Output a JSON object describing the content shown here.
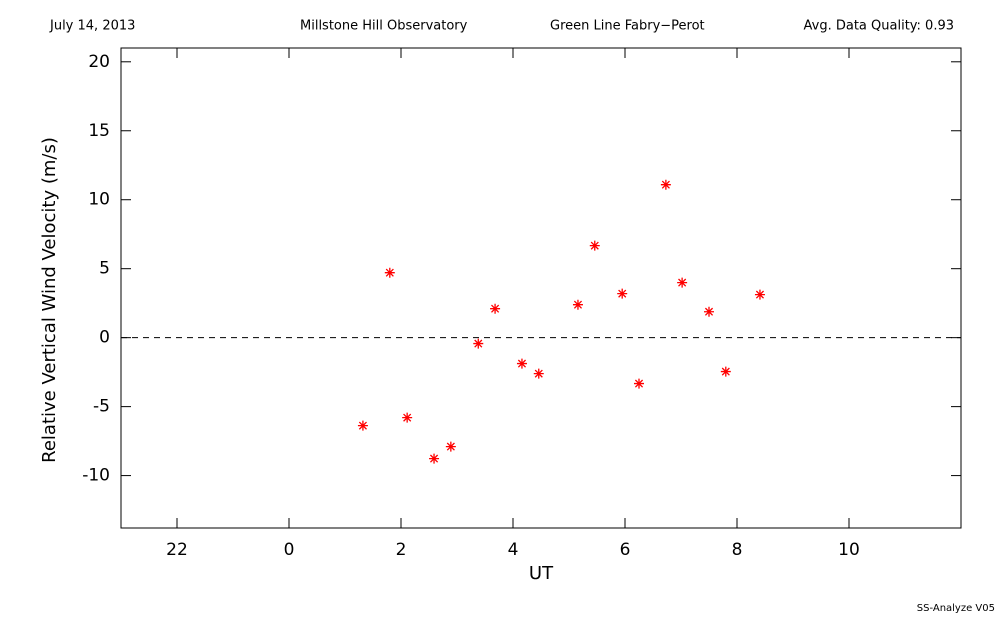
{
  "chart_data": {
    "type": "scatter",
    "header": [
      "July 14, 2013",
      "Millstone Hill Observatory",
      "Green Line Fabry−Perot",
      "Avg. Data Quality: 0.93"
    ],
    "footer": "SS-Analyze V05",
    "xlabel": "UT",
    "ylabel": "Relative Vertical Wind Velocity (m/s)",
    "x": [
      1.32,
      1.8,
      2.11,
      2.59,
      2.89,
      3.38,
      3.68,
      4.16,
      4.46,
      5.16,
      5.46,
      5.95,
      6.25,
      6.73,
      7.02,
      7.5,
      7.8,
      8.41
    ],
    "values": [
      -6.38,
      4.71,
      -5.8,
      -8.77,
      -7.9,
      -0.43,
      2.1,
      -1.88,
      -2.61,
      2.39,
      6.67,
      3.19,
      -3.33,
      11.09,
      3.99,
      1.88,
      -2.46,
      3.12
    ],
    "color": "#ff0000",
    "xlim": [
      -3,
      12
    ],
    "xticks": [
      {
        "value": -2,
        "label": "22"
      },
      0,
      2,
      4,
      6,
      8,
      10
    ],
    "ylim": [
      -13.8,
      21
    ],
    "yticks": [
      -10,
      -5,
      0,
      5,
      10,
      15,
      20
    ],
    "hline": 0
  }
}
